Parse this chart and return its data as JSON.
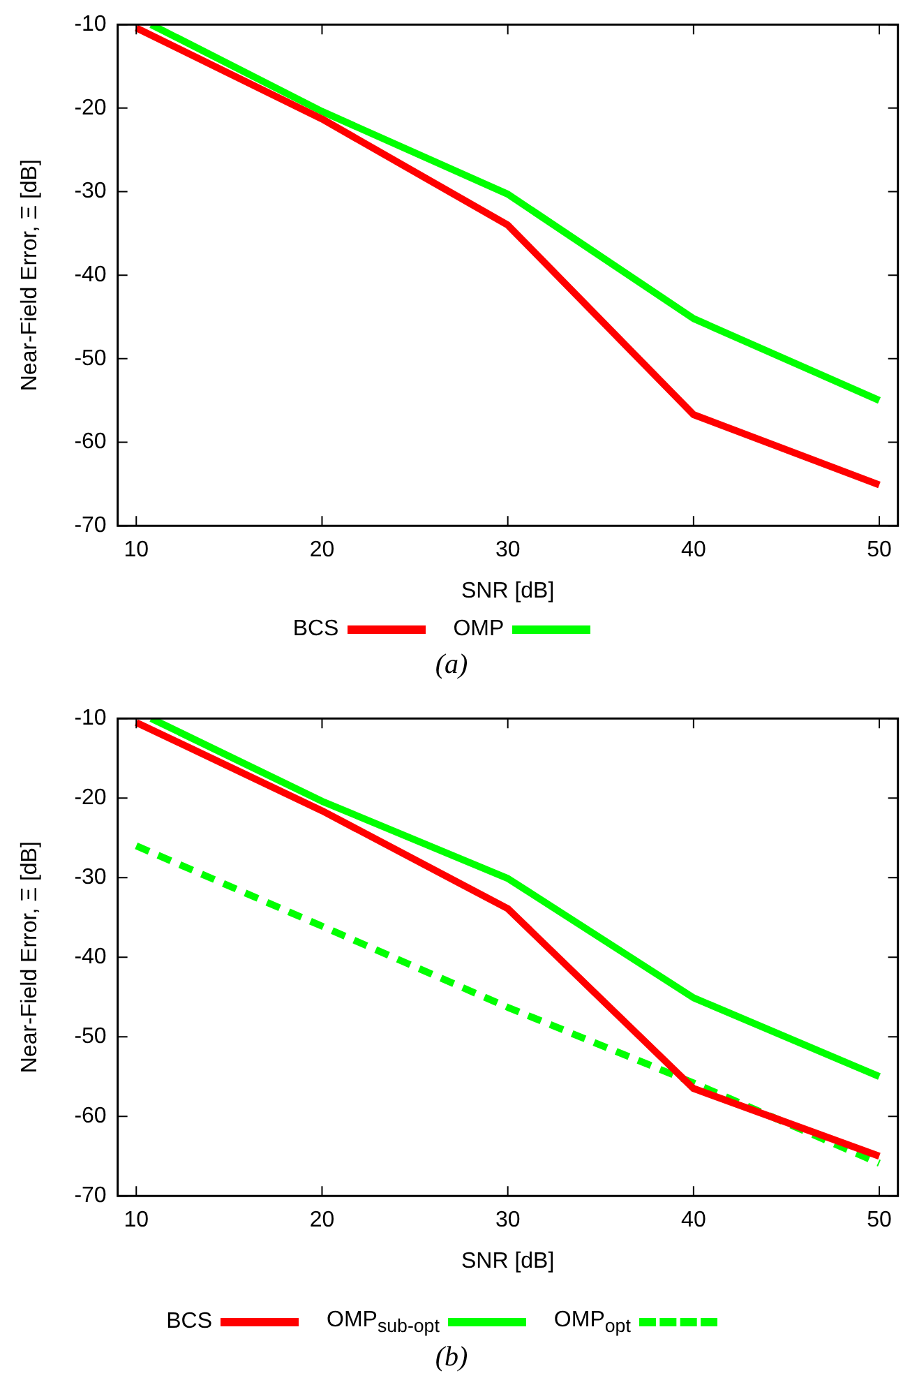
{
  "chart_data": [
    {
      "type": "line",
      "xlabel": "SNR [dB]",
      "ylabel": "Near-Field Error, Ξ [dB]",
      "x": [
        10,
        20,
        30,
        40,
        50
      ],
      "xlim": [
        9,
        51
      ],
      "xticks": [
        10,
        20,
        30,
        40,
        50
      ],
      "ylim": [
        -70,
        -10
      ],
      "yticks": [
        -70,
        -60,
        -50,
        -40,
        -30,
        -20,
        -10
      ],
      "grid": false,
      "legend": "bottom",
      "marker": "none",
      "annotations": [
        "(a)"
      ],
      "series": [
        {
          "name": "BCS",
          "color": "#ff0000",
          "values": [
            -10.4,
            -21.3,
            -34,
            -56.7,
            -65.1
          ]
        },
        {
          "name": "OMP",
          "color": "#00ff00",
          "x": [
            10.8,
            20,
            30,
            40,
            50
          ],
          "values": [
            -10,
            -20.4,
            -30.3,
            -45.2,
            -55
          ]
        }
      ]
    },
    {
      "type": "line",
      "xlabel": "SNR [dB]",
      "ylabel": "Near-Field Error, Ξ [dB]",
      "x": [
        10,
        20,
        30,
        40,
        50
      ],
      "xlim": [
        9,
        51
      ],
      "xticks": [
        10,
        20,
        30,
        40,
        50
      ],
      "ylim": [
        -70,
        -10
      ],
      "yticks": [
        -70,
        -60,
        -50,
        -40,
        -30,
        -20,
        -10
      ],
      "grid": false,
      "legend": "bottom",
      "marker": "none",
      "annotations": [
        "(b)"
      ],
      "series": [
        {
          "name": "BCS",
          "color": "#ff0000",
          "values": [
            -10.5,
            -21.6,
            -33.9,
            -56.5,
            -65
          ]
        },
        {
          "name": "OMP$_{sub-opt}$",
          "color": "#00ff00",
          "x": [
            10.8,
            20,
            30,
            40,
            50
          ],
          "values": [
            -10,
            -20.4,
            -30.1,
            -45.1,
            -55
          ]
        },
        {
          "name": "OMP$_{opt}$",
          "color": "#00ff00",
          "line_style": "dashed",
          "values": [
            -26,
            -36.1,
            -46.3,
            -55.8,
            -65.9
          ]
        }
      ]
    }
  ]
}
